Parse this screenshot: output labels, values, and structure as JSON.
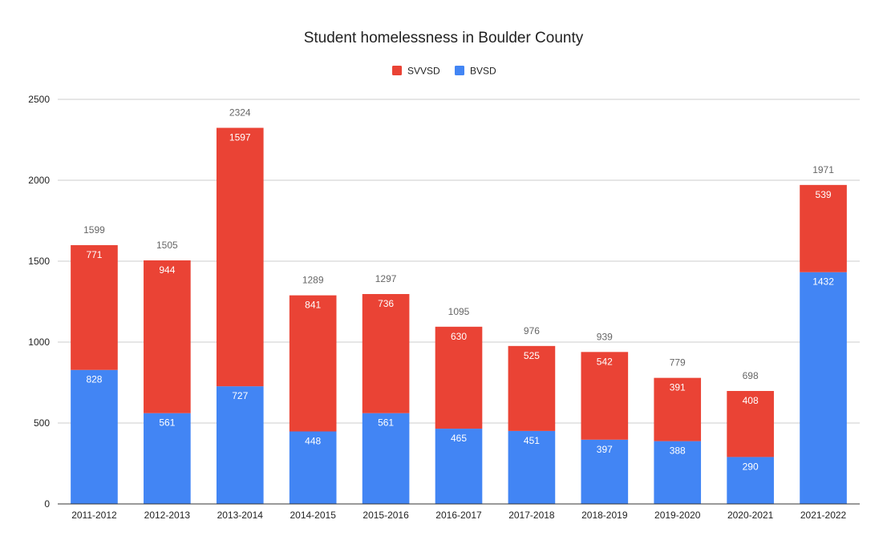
{
  "chart_data": {
    "type": "bar",
    "stacked": true,
    "title": "Student homelessness in Boulder County",
    "xlabel": "",
    "ylabel": "",
    "ylim": [
      0,
      2500
    ],
    "yticks": [
      "0",
      "500",
      "1000",
      "1500",
      "2000",
      "2500"
    ],
    "grid": true,
    "legend_position": "top",
    "categories": [
      "2011-2012",
      "2012-2013",
      "2013-2014",
      "2014-2015",
      "2015-2016",
      "2016-2017",
      "2017-2018",
      "2018-2019",
      "2019-2020",
      "2020-2021",
      "2021-2022"
    ],
    "series": [
      {
        "name": "BVSD",
        "color": "#4285f4",
        "values": [
          828,
          561,
          727,
          448,
          561,
          465,
          451,
          397,
          388,
          290,
          1432
        ]
      },
      {
        "name": "SVVSD",
        "color": "#ea4335",
        "values": [
          771,
          944,
          1597,
          841,
          736,
          630,
          525,
          542,
          391,
          408,
          539
        ]
      }
    ],
    "totals": [
      1599,
      1505,
      2324,
      1289,
      1297,
      1095,
      976,
      939,
      779,
      698,
      1971
    ],
    "legend": [
      {
        "name": "SVVSD",
        "color": "#ea4335"
      },
      {
        "name": "BVSD",
        "color": "#4285f4"
      }
    ]
  }
}
